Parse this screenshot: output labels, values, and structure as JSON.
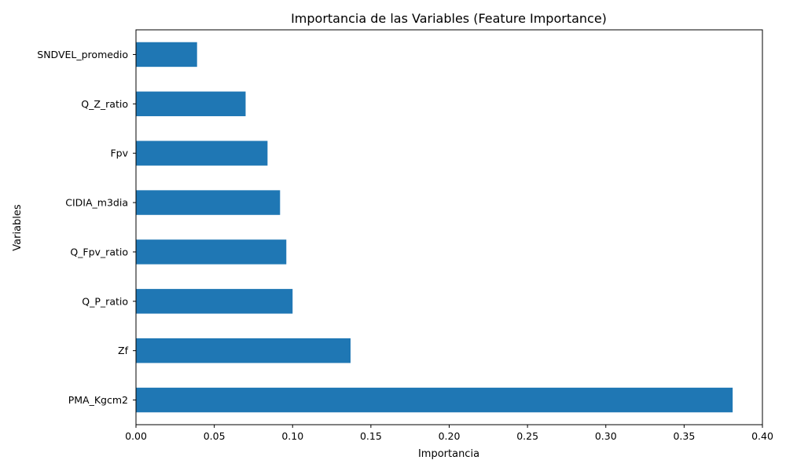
{
  "chart_data": {
    "type": "bar",
    "orientation": "horizontal",
    "title": "Importancia de las Variables (Feature Importance)",
    "xlabel": "Importancia",
    "ylabel": "Variables",
    "categories": [
      "PMA_Kgcm2",
      "Zf",
      "Q_P_ratio",
      "Q_Fpv_ratio",
      "CIDIA_m3dia",
      "Fpv",
      "Q_Z_ratio",
      "SNDVEL_promedio"
    ],
    "values": [
      0.381,
      0.137,
      0.1,
      0.096,
      0.092,
      0.084,
      0.07,
      0.039
    ],
    "xlim": [
      0,
      0.4
    ],
    "xticks": [
      0.0,
      0.05,
      0.1,
      0.15,
      0.2,
      0.25,
      0.3,
      0.35,
      0.4
    ],
    "xtick_labels": [
      "0.00",
      "0.05",
      "0.10",
      "0.15",
      "0.20",
      "0.25",
      "0.30",
      "0.35",
      "0.40"
    ],
    "bar_color": "#1f77b4",
    "grid": false,
    "legend": "none"
  }
}
